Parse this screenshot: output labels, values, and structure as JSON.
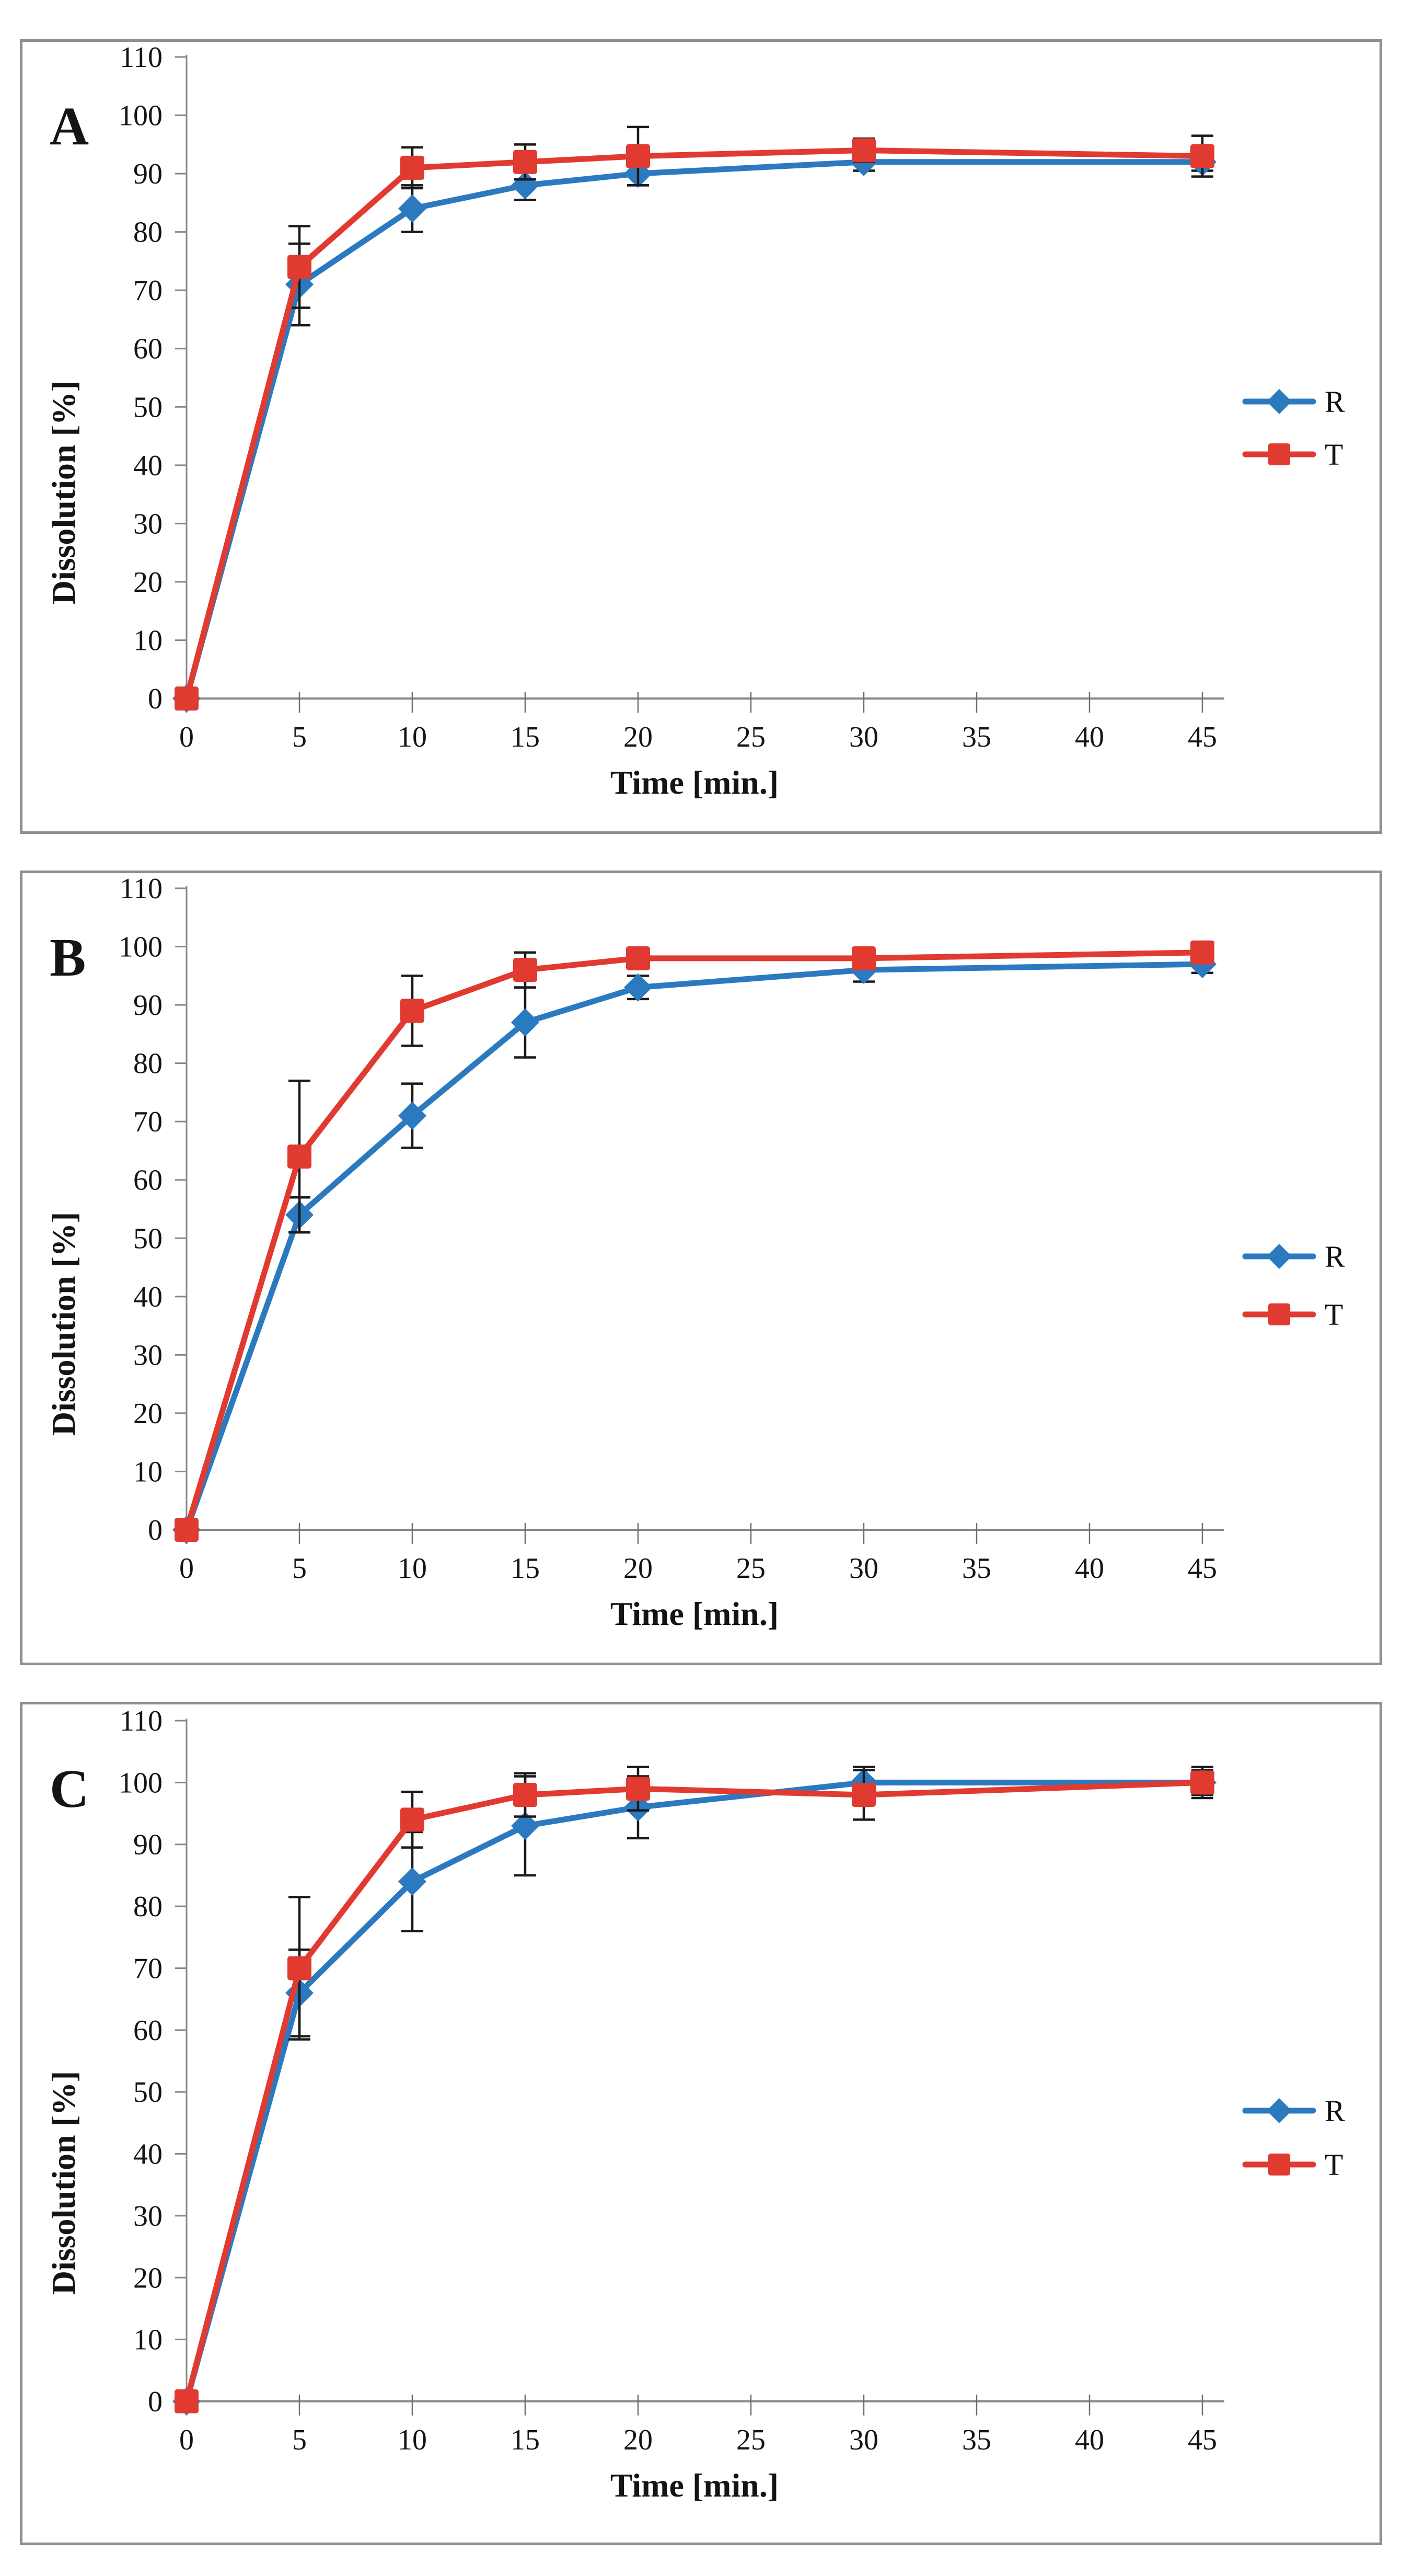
{
  "figure_caption": "Dissolution profiles figure with three panels",
  "style": {
    "background": "#ffffff",
    "panel_border_color": "#8f8f8f",
    "axis_color": "#878787",
    "tick_color": "#6e6e6e",
    "error_bar_color": "#1a1a1a",
    "text_color": "#141414",
    "series_R_color": "#2b7ac0",
    "series_T_color": "#e03a31"
  },
  "chart_data": [
    {
      "type": "line",
      "panel_label": "A",
      "xlabel": "Time [min.]",
      "ylabel": "Dissolution [%]",
      "xlim": [
        0,
        45
      ],
      "ylim": [
        0,
        110
      ],
      "grid": false,
      "x_ticks": [
        0,
        5,
        10,
        15,
        20,
        25,
        30,
        35,
        40,
        45
      ],
      "y_ticks": [
        0,
        10,
        20,
        30,
        40,
        50,
        60,
        70,
        80,
        90,
        100,
        110
      ],
      "x": [
        0,
        5,
        10,
        15,
        20,
        30,
        45
      ],
      "legend_position": "right",
      "legend_y": [
        0.455,
        0.522
      ],
      "series": [
        {
          "name": "R",
          "marker": "diamond",
          "color": "#2b7ac0",
          "values": [
            0,
            71,
            84,
            88,
            90,
            92,
            92
          ],
          "errors": [
            0,
            7,
            4,
            2.5,
            2,
            1.5,
            1.5
          ]
        },
        {
          "name": "T",
          "marker": "square",
          "color": "#e03a31",
          "values": [
            0,
            74,
            91,
            92,
            93,
            94,
            93
          ],
          "errors": [
            0,
            7,
            3.5,
            3,
            5,
            2,
            3.5
          ]
        }
      ]
    },
    {
      "type": "line",
      "panel_label": "B",
      "xlabel": "Time [min.]",
      "ylabel": "Dissolution [%]",
      "xlim": [
        0,
        45
      ],
      "ylim": [
        0,
        110
      ],
      "grid": false,
      "x_ticks": [
        0,
        5,
        10,
        15,
        20,
        25,
        30,
        35,
        40,
        45
      ],
      "y_ticks": [
        0,
        10,
        20,
        30,
        40,
        50,
        60,
        70,
        80,
        90,
        100,
        110
      ],
      "x": [
        0,
        5,
        10,
        15,
        20,
        30,
        45
      ],
      "legend_position": "right",
      "legend_y": [
        0.485,
        0.558
      ],
      "series": [
        {
          "name": "R",
          "marker": "diamond",
          "color": "#2b7ac0",
          "values": [
            0,
            54,
            71,
            87,
            93,
            96,
            97
          ],
          "errors": [
            0,
            3,
            5.5,
            6,
            2,
            2,
            1.5
          ]
        },
        {
          "name": "T",
          "marker": "square",
          "color": "#e03a31",
          "values": [
            0,
            64,
            89,
            96,
            98,
            98,
            99
          ],
          "errors": [
            0,
            13,
            6,
            3,
            1.5,
            1.5,
            1.5
          ]
        }
      ]
    },
    {
      "type": "line",
      "panel_label": "C",
      "xlabel": "Time [min.]",
      "ylabel": "Dissolution [%]",
      "xlim": [
        0,
        45
      ],
      "ylim": [
        0,
        110
      ],
      "grid": false,
      "x_ticks": [
        0,
        5,
        10,
        15,
        20,
        25,
        30,
        35,
        40,
        45
      ],
      "y_ticks": [
        0,
        10,
        20,
        30,
        40,
        50,
        60,
        70,
        80,
        90,
        100,
        110
      ],
      "x": [
        0,
        5,
        10,
        15,
        20,
        30,
        45
      ],
      "legend_position": "right",
      "legend_y": [
        0.484,
        0.548
      ],
      "series": [
        {
          "name": "R",
          "marker": "diamond",
          "color": "#2b7ac0",
          "values": [
            0,
            66,
            84,
            93,
            96,
            100,
            100
          ],
          "errors": [
            0,
            7,
            8,
            8,
            5,
            2.5,
            2
          ]
        },
        {
          "name": "T",
          "marker": "square",
          "color": "#e03a31",
          "values": [
            0,
            70,
            94,
            98,
            99,
            98,
            100
          ],
          "errors": [
            0,
            11.5,
            4.5,
            3.5,
            3.5,
            4,
            2.5
          ]
        }
      ]
    }
  ]
}
